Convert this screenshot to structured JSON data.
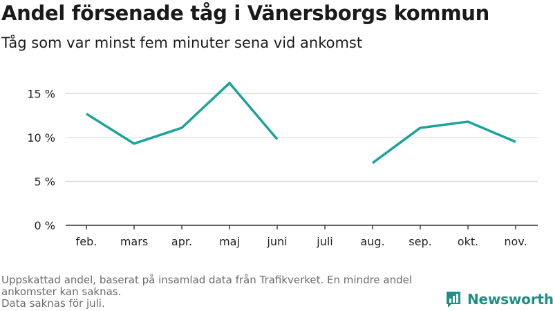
{
  "header": {
    "title": "Andel försenade tåg i Vänersborgs kommun",
    "subtitle": "Tåg som var minst fem minuter sena vid ankomst"
  },
  "chart_data": {
    "type": "line",
    "title": "Andel försenade tåg i Vänersborgs kommun",
    "subtitle": "Tåg som var minst fem minuter sena vid ankomst",
    "categories": [
      "feb.",
      "mars",
      "apr.",
      "maj",
      "juni",
      "juli",
      "aug.",
      "sep.",
      "okt.",
      "nov."
    ],
    "series": [
      {
        "values": [
          12.7,
          9.3,
          11.1,
          16.2,
          9.8,
          null,
          7.1,
          11.1,
          11.8,
          9.5
        ],
        "color": "#1aa39a"
      }
    ],
    "yticks": [
      0,
      5,
      10,
      15
    ],
    "ytick_labels": [
      "0 %",
      "5 %",
      "10 %",
      "15 %"
    ],
    "ylim": [
      0,
      17
    ],
    "grid": true,
    "xlabel": "",
    "ylabel": ""
  },
  "footer": {
    "note_line1": "Uppskattad andel, baserat på insamlad data från Trafikverket. En mindre andel ankomster kan saknas.",
    "note_line2": "Data saknas för juli.",
    "brand": "Newsworthy"
  },
  "colors": {
    "line": "#1aa39a",
    "grid": "#d9d9d9",
    "axis": "#333333",
    "brand": "#1e8f86"
  }
}
